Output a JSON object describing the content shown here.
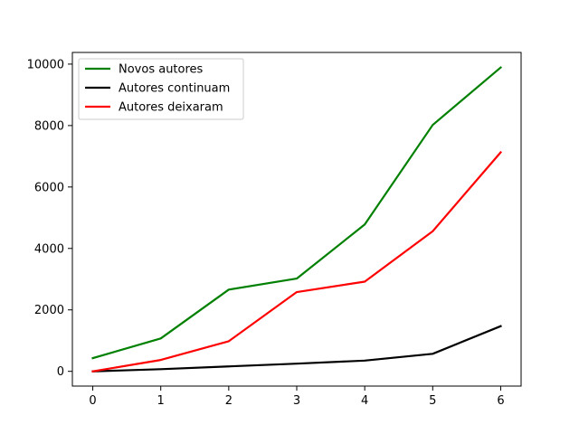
{
  "chart_data": {
    "type": "line",
    "title": "",
    "xlabel": "",
    "ylabel": "",
    "x": [
      0,
      1,
      2,
      3,
      4,
      5,
      6
    ],
    "xlim": [
      -0.3,
      6.3
    ],
    "ylim": [
      -480,
      10380
    ],
    "xticks": [
      "0",
      "1",
      "2",
      "3",
      "4",
      "5",
      "6"
    ],
    "yticks": [
      0,
      2000,
      4000,
      6000,
      8000,
      10000
    ],
    "ytick_labels": [
      "0",
      "2000",
      "4000",
      "6000",
      "8000",
      "10000"
    ],
    "grid": false,
    "legend_position": "top-left",
    "series": [
      {
        "name": "Novos autores",
        "color": "#008000",
        "values": [
          430,
          1070,
          2660,
          3020,
          4780,
          8020,
          9890
        ]
      },
      {
        "name": "Autores continuam",
        "color": "#000000",
        "values": [
          0,
          70,
          160,
          250,
          350,
          570,
          1470
        ]
      },
      {
        "name": "Autores deixaram",
        "color": "#ff0000",
        "values": [
          0,
          370,
          980,
          2580,
          2920,
          4560,
          7130
        ]
      }
    ]
  }
}
